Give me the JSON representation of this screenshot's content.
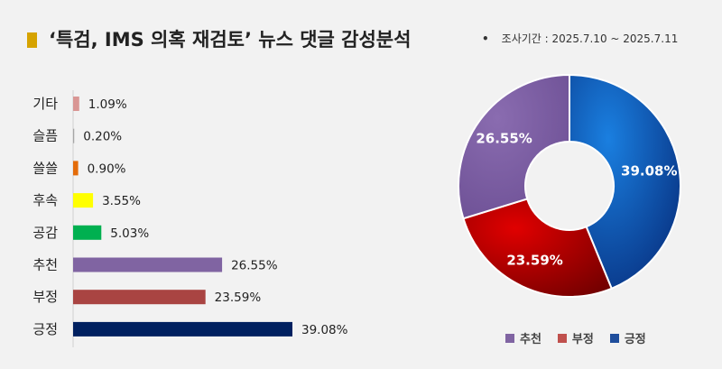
{
  "header": {
    "title": "‘특검, IMS 의혹 재검토’ 뉴스 댓글 감성분석",
    "survey_period": "조사기간 : 2025.7.10 ~ 2025.7.11",
    "bullet": "•"
  },
  "chart_data": [
    {
      "type": "bar",
      "orientation": "horizontal",
      "categories": [
        "기타",
        "슬픔",
        "쓸쓸",
        "후속",
        "공감",
        "추천",
        "부정",
        "긍정"
      ],
      "values": [
        1.09,
        0.2,
        0.9,
        3.55,
        5.03,
        26.55,
        23.59,
        39.08
      ],
      "labels": [
        "1.09%",
        "0.20%",
        "0.90%",
        "3.55%",
        "5.03%",
        "26.55%",
        "23.59%",
        "39.08%"
      ],
      "colors": [
        "#d99694",
        "#a6a6a6",
        "#e46c0a",
        "#ffff00",
        "#00b050",
        "#8064a2",
        "#a94442",
        "#002060"
      ],
      "unit": "%",
      "xlim": [
        0,
        39.08
      ],
      "grid": false
    },
    {
      "type": "pie",
      "donut": true,
      "categories": [
        "긍정",
        "부정",
        "추천"
      ],
      "values": [
        39.08,
        23.59,
        26.55
      ],
      "labels": [
        "39.08%",
        "23.59%",
        "26.55%"
      ],
      "colors": [
        "#0b58b8",
        "#c00000",
        "#8064a2"
      ],
      "legend_position": "bottom"
    }
  ],
  "legend": [
    {
      "label": "추천",
      "color": "#8064a2"
    },
    {
      "label": "부정",
      "color": "#c0504d"
    },
    {
      "label": "긍정",
      "color": "#1f4e9c"
    }
  ]
}
